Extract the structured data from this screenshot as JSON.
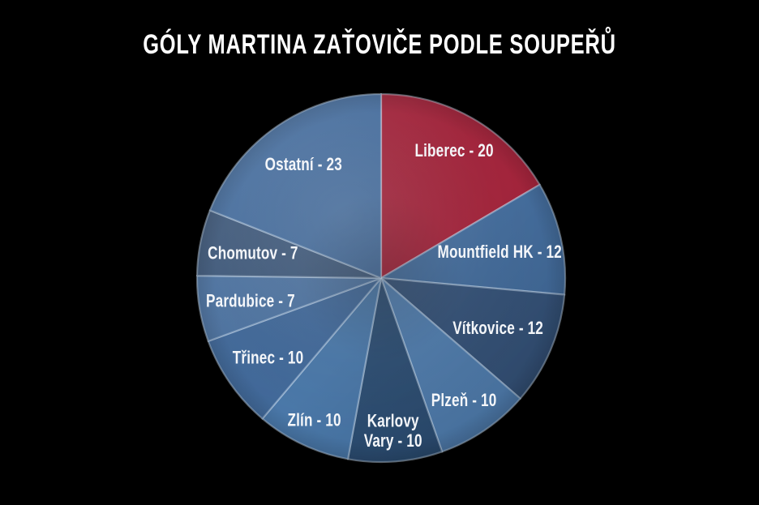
{
  "page": {
    "background_color": "#000000",
    "text_color": "#FFFFFF"
  },
  "chart_data": {
    "type": "pie",
    "title": "GÓLY MARTINA ZAŤOVIČE PODLE SOUPEŘŮ",
    "total": 121,
    "start_angle_deg": 0,
    "direction": "clockwise",
    "legend": "none",
    "label_format": "{label} - {value}",
    "label_color": "#FFFFFF",
    "accent_color": "#9E1B33",
    "slices": [
      {
        "label": "Liberec",
        "value": 20,
        "color": "#9E1B33",
        "label_r": 0.8
      },
      {
        "label": "Mountfield HK",
        "value": 12,
        "color": "#3D6798",
        "label_r": 0.66
      },
      {
        "label": "Vítkovice",
        "value": 12,
        "color": "#2F4D74",
        "label_r": 0.69
      },
      {
        "label": "Plzeň",
        "value": 10,
        "color": "#4B79AB",
        "label_r": 0.8
      },
      {
        "label": "Karlovy Vary",
        "value": 10,
        "color": "#27496F",
        "label_r": 0.83,
        "label_lines": [
          "Karlovy",
          "Vary - 10"
        ]
      },
      {
        "label": "Zlín",
        "value": 10,
        "color": "#4473A5",
        "label_r": 0.85
      },
      {
        "label": "Třinec",
        "value": 10,
        "color": "#3B6496",
        "label_r": 0.75
      },
      {
        "label": "Pardubice",
        "value": 7,
        "color": "#486F9E",
        "label_r": 0.72
      },
      {
        "label": "Chomutov",
        "value": 7,
        "color": "#3A5578",
        "label_r": 0.71
      },
      {
        "label": "Ostatní",
        "value": 23,
        "color": "#40699B",
        "label_r": 0.75
      }
    ]
  }
}
